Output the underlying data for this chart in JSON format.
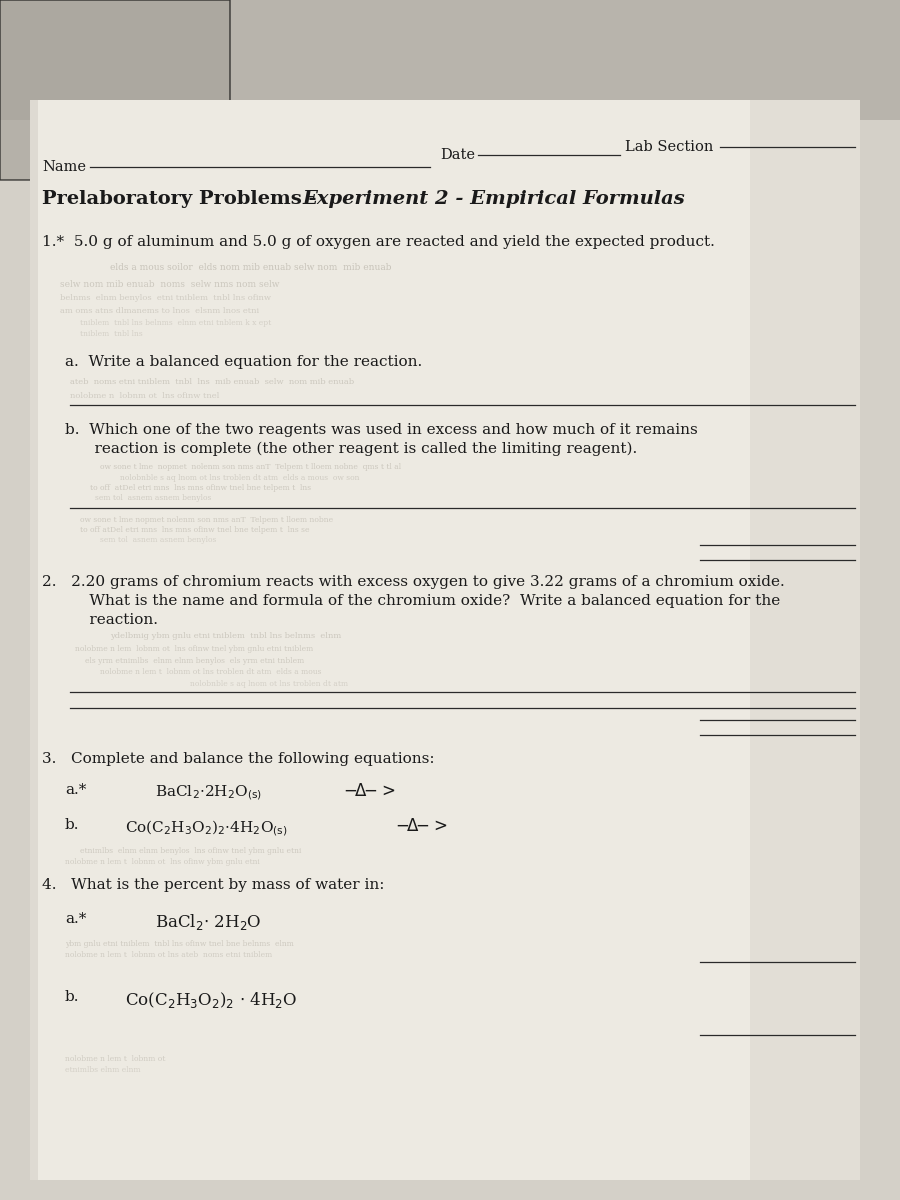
{
  "bg_color_top": "#c8c4bc",
  "bg_color_main": "#d4d0c8",
  "paper_color": "#edeae2",
  "paper_right_color": "#c8c4ba",
  "text_color": "#1a1a1a",
  "ghost_color": "#9a9488",
  "line_color": "#2a2a2a",
  "header_name": "Name",
  "header_date": "Date",
  "header_lab": "Lab Section",
  "title_plain": "Prelaboratory Problems - ",
  "title_italic": "Experiment 2 - Empirical Formulas",
  "q1_intro": "1.*  5.0 g of aluminum and 5.0 g of oxygen are reacted and yield the expected product.",
  "q1a": "a.  Write a balanced equation for the reaction.",
  "q1b1": "b.  Which one of the two reagents was used in excess and how much of it remains",
  "q1b2": "     reaction is complete (the other reagent is called the limiting reagent).",
  "q2_1": "2.   2.20 grams of chromium reacts with excess oxygen to give 3.22 grams of a chromium oxide.",
  "q2_2": "     What is the name and formula of the chromium oxide?  Write a balanced equation for the",
  "q2_3": "     reaction.",
  "q3_intro": "3.   Complete and balance the following equations:",
  "q4_intro": "4.   What is the percent by mass of water in:"
}
